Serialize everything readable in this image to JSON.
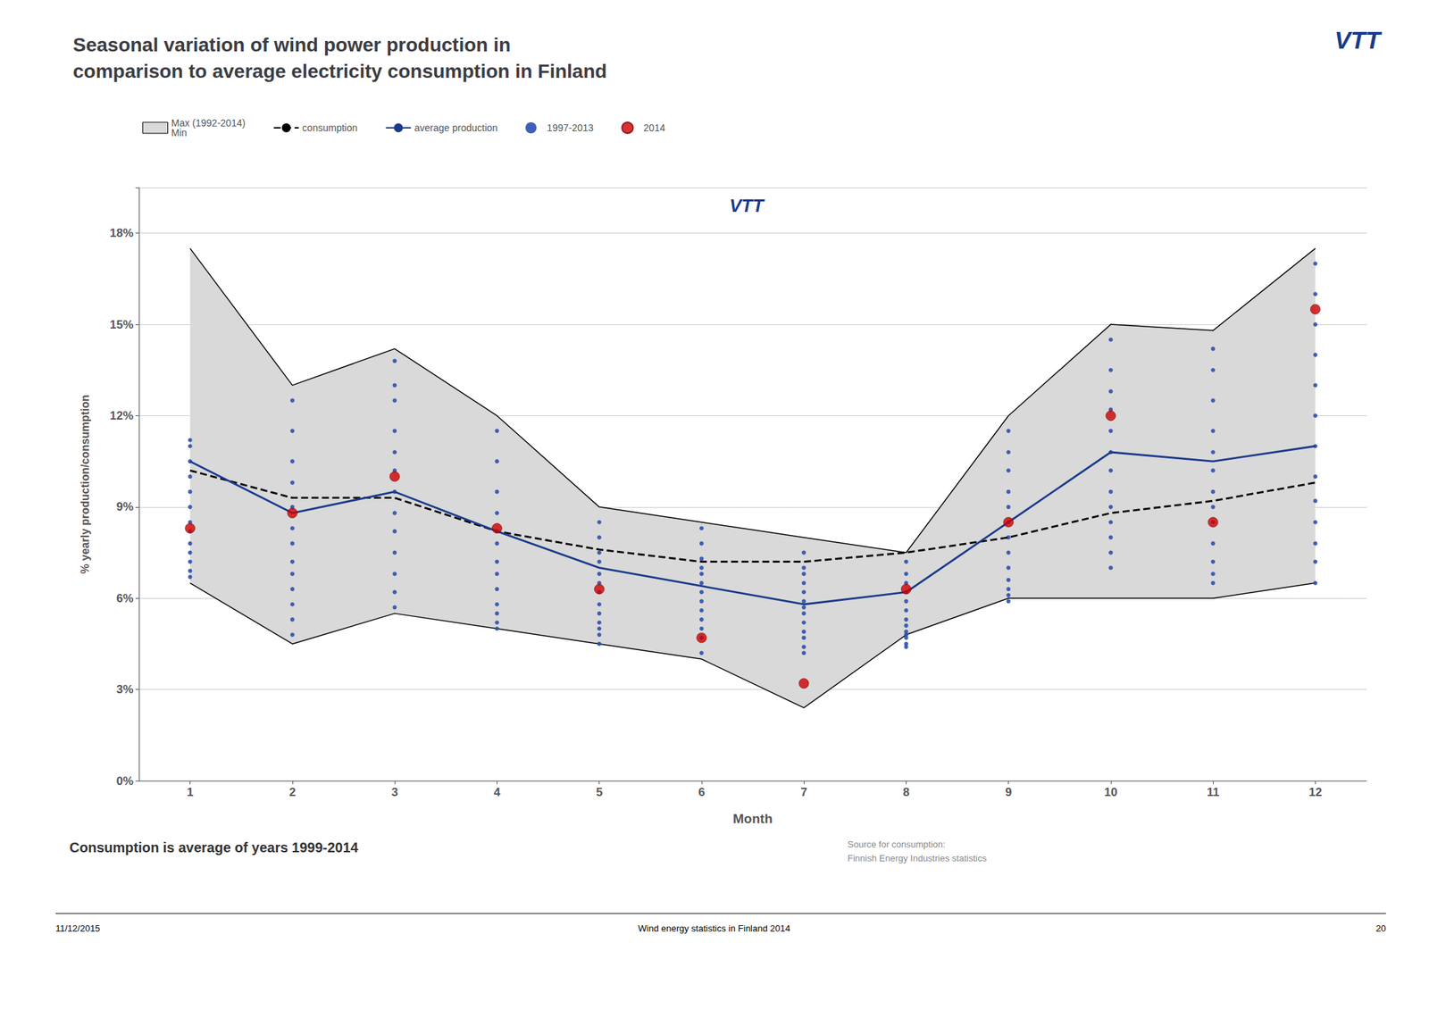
{
  "chart_data": {
    "type": "line",
    "title": "Seasonal variation of wind power production in\ncomparison to average electricity consumption in Finland",
    "subtitle": "Consumption is average of years 1999-2014",
    "x_label": "Month",
    "y_label": "% yearly production/consumption",
    "annotations": [
      "Source for consumption:\nFinnish Energy Industries statistics",
      "11/12/2015",
      "Wind energy statistics in Finland 2014",
      "20",
      "VTT",
      "VTT"
    ],
    "x": [
      1,
      2,
      3,
      4,
      5,
      6,
      7,
      8,
      9,
      10,
      11,
      12
    ],
    "xlim": [
      0.5,
      12.5
    ],
    "xticks": [
      1,
      2,
      3,
      4,
      5,
      6,
      7,
      8,
      9,
      10,
      11,
      12
    ],
    "ylim": [
      0,
      19.5
    ],
    "yticks": [
      {
        "value": 0,
        "label": "0%"
      },
      {
        "value": 3,
        "label": "3%"
      },
      {
        "value": 6,
        "label": "6%"
      },
      {
        "value": 9,
        "label": "9%"
      },
      {
        "value": 12,
        "label": "12%"
      },
      {
        "value": 15,
        "label": "15%"
      },
      {
        "value": 18,
        "label": "18%"
      }
    ],
    "grid": "y",
    "legend": "top",
    "series": [
      {
        "name": "Max (1992-2014)\nMin",
        "type": "band",
        "color": "#d9d9d9",
        "high": [
          17.5,
          13.0,
          14.2,
          12.0,
          9.0,
          8.5,
          8.0,
          7.5,
          12.0,
          15.0,
          14.8,
          17.5
        ],
        "low": [
          6.5,
          4.5,
          5.5,
          5.0,
          4.5,
          4.0,
          2.4,
          4.8,
          6.0,
          6.0,
          6.0,
          6.5
        ]
      },
      {
        "name": "consumption",
        "type": "line",
        "color": "#000000",
        "line_style": "dashed",
        "values": [
          10.2,
          9.3,
          9.3,
          8.2,
          7.6,
          7.2,
          7.2,
          7.5,
          8.0,
          8.8,
          9.2,
          9.8
        ]
      },
      {
        "name": "average production",
        "type": "line",
        "color": "#1A3A8C",
        "line_style": "solid",
        "values": [
          10.5,
          8.8,
          9.5,
          8.2,
          7.0,
          6.4,
          5.8,
          6.2,
          8.5,
          10.8,
          10.5,
          11.0
        ]
      },
      {
        "name": "1997-2013",
        "type": "scatter",
        "color": "#2B4FAF",
        "marker": "circle",
        "x": [
          1,
          1,
          1,
          1,
          1,
          1,
          1,
          1,
          1,
          1,
          1,
          1,
          1,
          2,
          2,
          2,
          2,
          2,
          2,
          2,
          2,
          2,
          2,
          2,
          2,
          2,
          3,
          3,
          3,
          3,
          3,
          3,
          3,
          3,
          3,
          3,
          3,
          3,
          3,
          4,
          4,
          4,
          4,
          4,
          4,
          4,
          4,
          4,
          4,
          4,
          4,
          4,
          5,
          5,
          5,
          5,
          5,
          5,
          5,
          5,
          5,
          5,
          5,
          5,
          5,
          6,
          6,
          6,
          6,
          6,
          6,
          6,
          6,
          6,
          6,
          6,
          6,
          6,
          7,
          7,
          7,
          7,
          7,
          7,
          7,
          7,
          7,
          7,
          7,
          7,
          7,
          8,
          8,
          8,
          8,
          8,
          8,
          8,
          8,
          8,
          8,
          8,
          8,
          8,
          9,
          9,
          9,
          9,
          9,
          9,
          9,
          9,
          9,
          9,
          9,
          9,
          9,
          10,
          10,
          10,
          10,
          10,
          10,
          10,
          10,
          10,
          10,
          10,
          10,
          10,
          11,
          11,
          11,
          11,
          11,
          11,
          11,
          11,
          11,
          11,
          11,
          11,
          11,
          12,
          12,
          12,
          12,
          12,
          12,
          12,
          12,
          12,
          12,
          12,
          12,
          12
        ],
        "values": [
          11.2,
          11.0,
          10.5,
          10.0,
          9.5,
          9.0,
          8.5,
          8.2,
          7.8,
          7.5,
          7.2,
          6.9,
          6.7,
          12.5,
          11.5,
          10.5,
          9.8,
          9.0,
          8.3,
          7.8,
          7.2,
          6.8,
          6.3,
          5.8,
          5.3,
          4.8,
          13.8,
          13.0,
          12.5,
          11.5,
          10.8,
          10.2,
          9.5,
          8.8,
          8.2,
          7.5,
          6.8,
          6.2,
          5.7,
          11.5,
          10.5,
          9.5,
          8.8,
          8.2,
          7.8,
          7.2,
          6.8,
          6.3,
          5.8,
          5.5,
          5.2,
          5.0,
          8.5,
          8.0,
          7.5,
          7.2,
          6.8,
          6.5,
          6.2,
          5.8,
          5.5,
          5.2,
          5.0,
          4.8,
          4.5,
          8.3,
          7.8,
          7.3,
          7.0,
          6.8,
          6.5,
          6.2,
          5.9,
          5.6,
          5.3,
          5.0,
          4.7,
          4.2,
          7.5,
          7.0,
          6.8,
          6.5,
          6.2,
          5.9,
          5.7,
          5.5,
          5.2,
          4.9,
          4.7,
          4.4,
          4.2,
          7.2,
          6.8,
          6.5,
          6.2,
          5.9,
          5.6,
          5.3,
          5.1,
          4.9,
          4.8,
          4.7,
          4.5,
          4.4,
          11.5,
          10.8,
          10.2,
          9.5,
          9.0,
          8.5,
          8.0,
          7.5,
          7.0,
          6.6,
          6.3,
          6.1,
          5.9,
          14.5,
          13.5,
          12.8,
          12.2,
          11.5,
          10.8,
          10.2,
          9.5,
          9.0,
          8.5,
          8.0,
          7.5,
          7.0,
          14.2,
          13.5,
          12.5,
          11.5,
          10.8,
          10.2,
          9.5,
          9.0,
          8.5,
          7.8,
          7.2,
          6.8,
          6.5,
          17.0,
          16.0,
          15.0,
          14.0,
          13.0,
          12.0,
          11.0,
          10.0,
          9.2,
          8.5,
          7.8,
          7.2,
          6.5
        ]
      },
      {
        "name": "2014",
        "type": "scatter",
        "color": "#CC0000",
        "marker": "circle",
        "values": [
          8.3,
          8.8,
          10.0,
          8.3,
          6.3,
          4.7,
          3.2,
          6.3,
          8.5,
          12.0,
          8.5,
          15.5
        ]
      }
    ]
  }
}
